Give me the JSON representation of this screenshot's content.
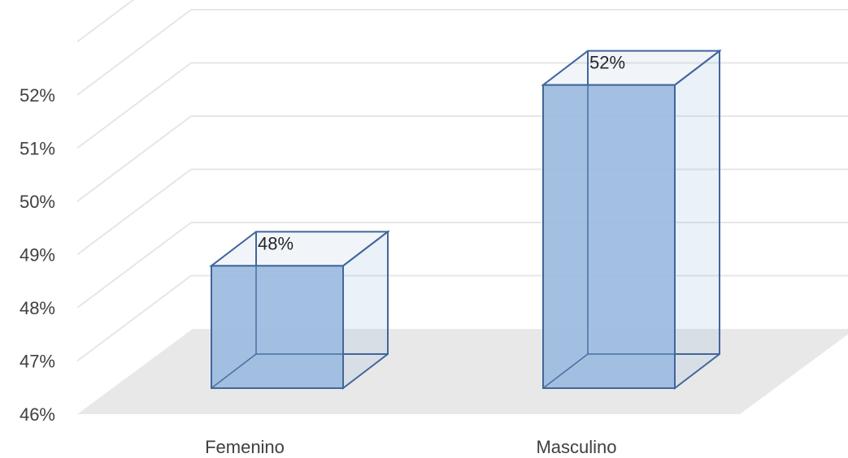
{
  "chart_data": {
    "type": "bar",
    "style": "3d-column",
    "categories": [
      "Femenino",
      "Masculino"
    ],
    "values": [
      48.3,
      51.7
    ],
    "data_labels": [
      "48%",
      "52%"
    ],
    "ylim": [
      46,
      52
    ],
    "y_ticks": [
      "46%",
      "47%",
      "48%",
      "49%",
      "50%",
      "51%",
      "52%"
    ],
    "grid": true,
    "legend": "none",
    "colors": {
      "bar_front": "#9bbbe0",
      "bar_side": "#8cafd8",
      "bar_edge": "#41669a",
      "floor": "#e8e8e8",
      "gridline": "#e6e6e6"
    }
  }
}
